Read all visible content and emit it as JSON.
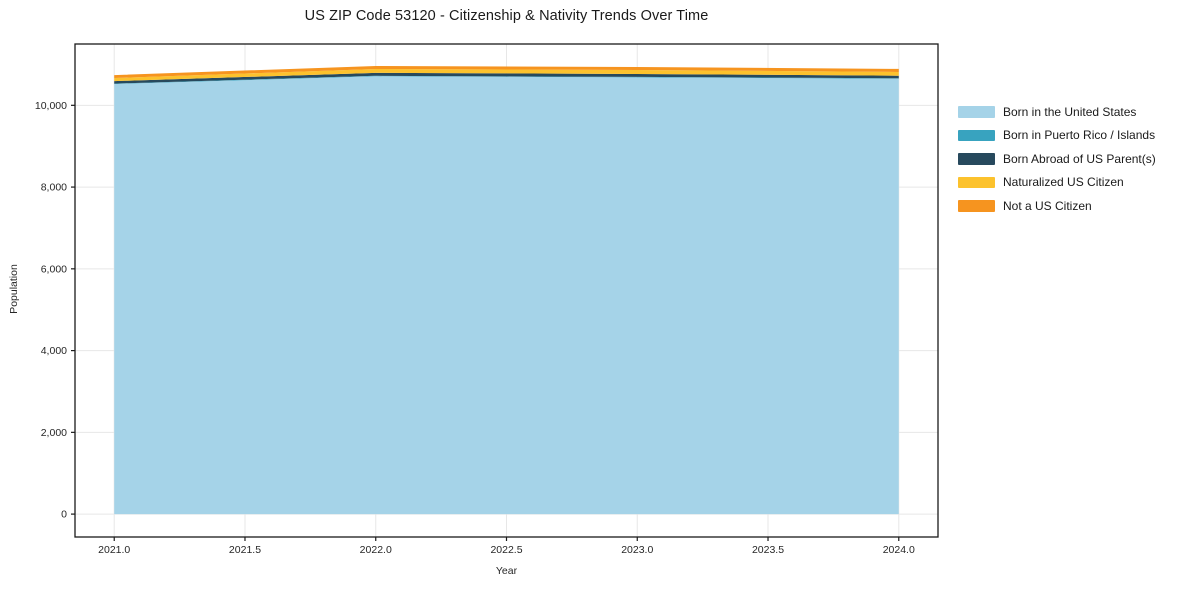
{
  "title": "US ZIP Code 53120 - Citizenship & Nativity Trends Over Time",
  "chart_data": {
    "type": "area",
    "stacked": true,
    "title": "US ZIP Code 53120 - Citizenship & Nativity Trends Over Time",
    "xlabel": "Year",
    "ylabel": "Population",
    "x": [
      2021,
      2022,
      2023,
      2024
    ],
    "series": [
      {
        "name": "Born in the United States",
        "color": "#a5d3e8",
        "values": [
          10520,
          10710,
          10685,
          10650
        ]
      },
      {
        "name": "Born in Puerto Rico / Islands",
        "color": "#38a3bf",
        "values": [
          12,
          12,
          12,
          12
        ]
      },
      {
        "name": "Born Abroad of US Parent(s)",
        "color": "#27495d",
        "values": [
          60,
          72,
          70,
          62
        ]
      },
      {
        "name": "Naturalized US Citizen",
        "color": "#fcc22d",
        "values": [
          75,
          95,
          98,
          92
        ]
      },
      {
        "name": "Not a US Citizen",
        "color": "#f6941f",
        "values": [
          73,
          73,
          73,
          75
        ]
      }
    ],
    "xlim": [
      2020.85,
      2024.15
    ],
    "ylim": [
      -560,
      11500
    ],
    "xticks": {
      "values": [
        2021.0,
        2021.5,
        2022.0,
        2022.5,
        2023.0,
        2023.5,
        2024.0
      ],
      "labels": [
        "2021.0",
        "2021.5",
        "2022.0",
        "2022.5",
        "2023.0",
        "2023.5",
        "2024.0"
      ]
    },
    "yticks": {
      "values": [
        0,
        2000,
        4000,
        6000,
        8000,
        10000
      ],
      "labels": [
        "0",
        "2,000",
        "4,000",
        "6,000",
        "8,000",
        "10,000"
      ]
    },
    "grid": true,
    "legend_position": "right-outside"
  },
  "style_colors": {
    "axis": "#1a1a1a",
    "tick_text": "#262626",
    "gridline": "#e7e7e7",
    "background": "#ffffff"
  }
}
